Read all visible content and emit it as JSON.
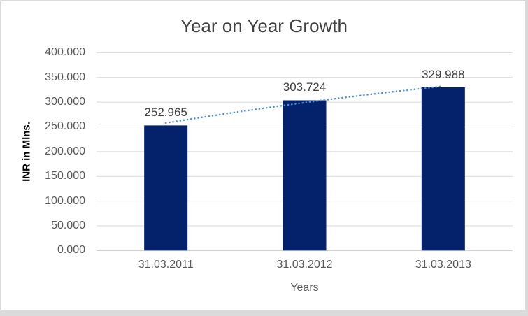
{
  "chart_data": {
    "type": "bar",
    "title": "Year on Year Growth",
    "xlabel": "Years",
    "ylabel": "INR in Mlns.",
    "categories": [
      "31.03.2011",
      "31.03.2012",
      "31.03.2013"
    ],
    "values": [
      252.965,
      303.724,
      329.988
    ],
    "data_labels": [
      "252.965",
      "303.724",
      "329.988"
    ],
    "ylim": [
      0,
      400
    ],
    "ytick_step": 50,
    "ytick_labels": [
      "0.000",
      "50.000",
      "100.000",
      "150.000",
      "200.000",
      "250.000",
      "300.000",
      "350.000",
      "400.000"
    ],
    "grid": true,
    "legend": "none",
    "trendline": {
      "style": "dotted",
      "color": "#4E8CD3"
    },
    "colors": {
      "bar": "#03226B",
      "gridline": "#D9D9D9",
      "axis_line": "#C3C3C3",
      "title_text": "#3F3F3F",
      "axis_text": "#595959",
      "data_label_text": "#404040",
      "frame_border": "#D9D9D9"
    }
  }
}
